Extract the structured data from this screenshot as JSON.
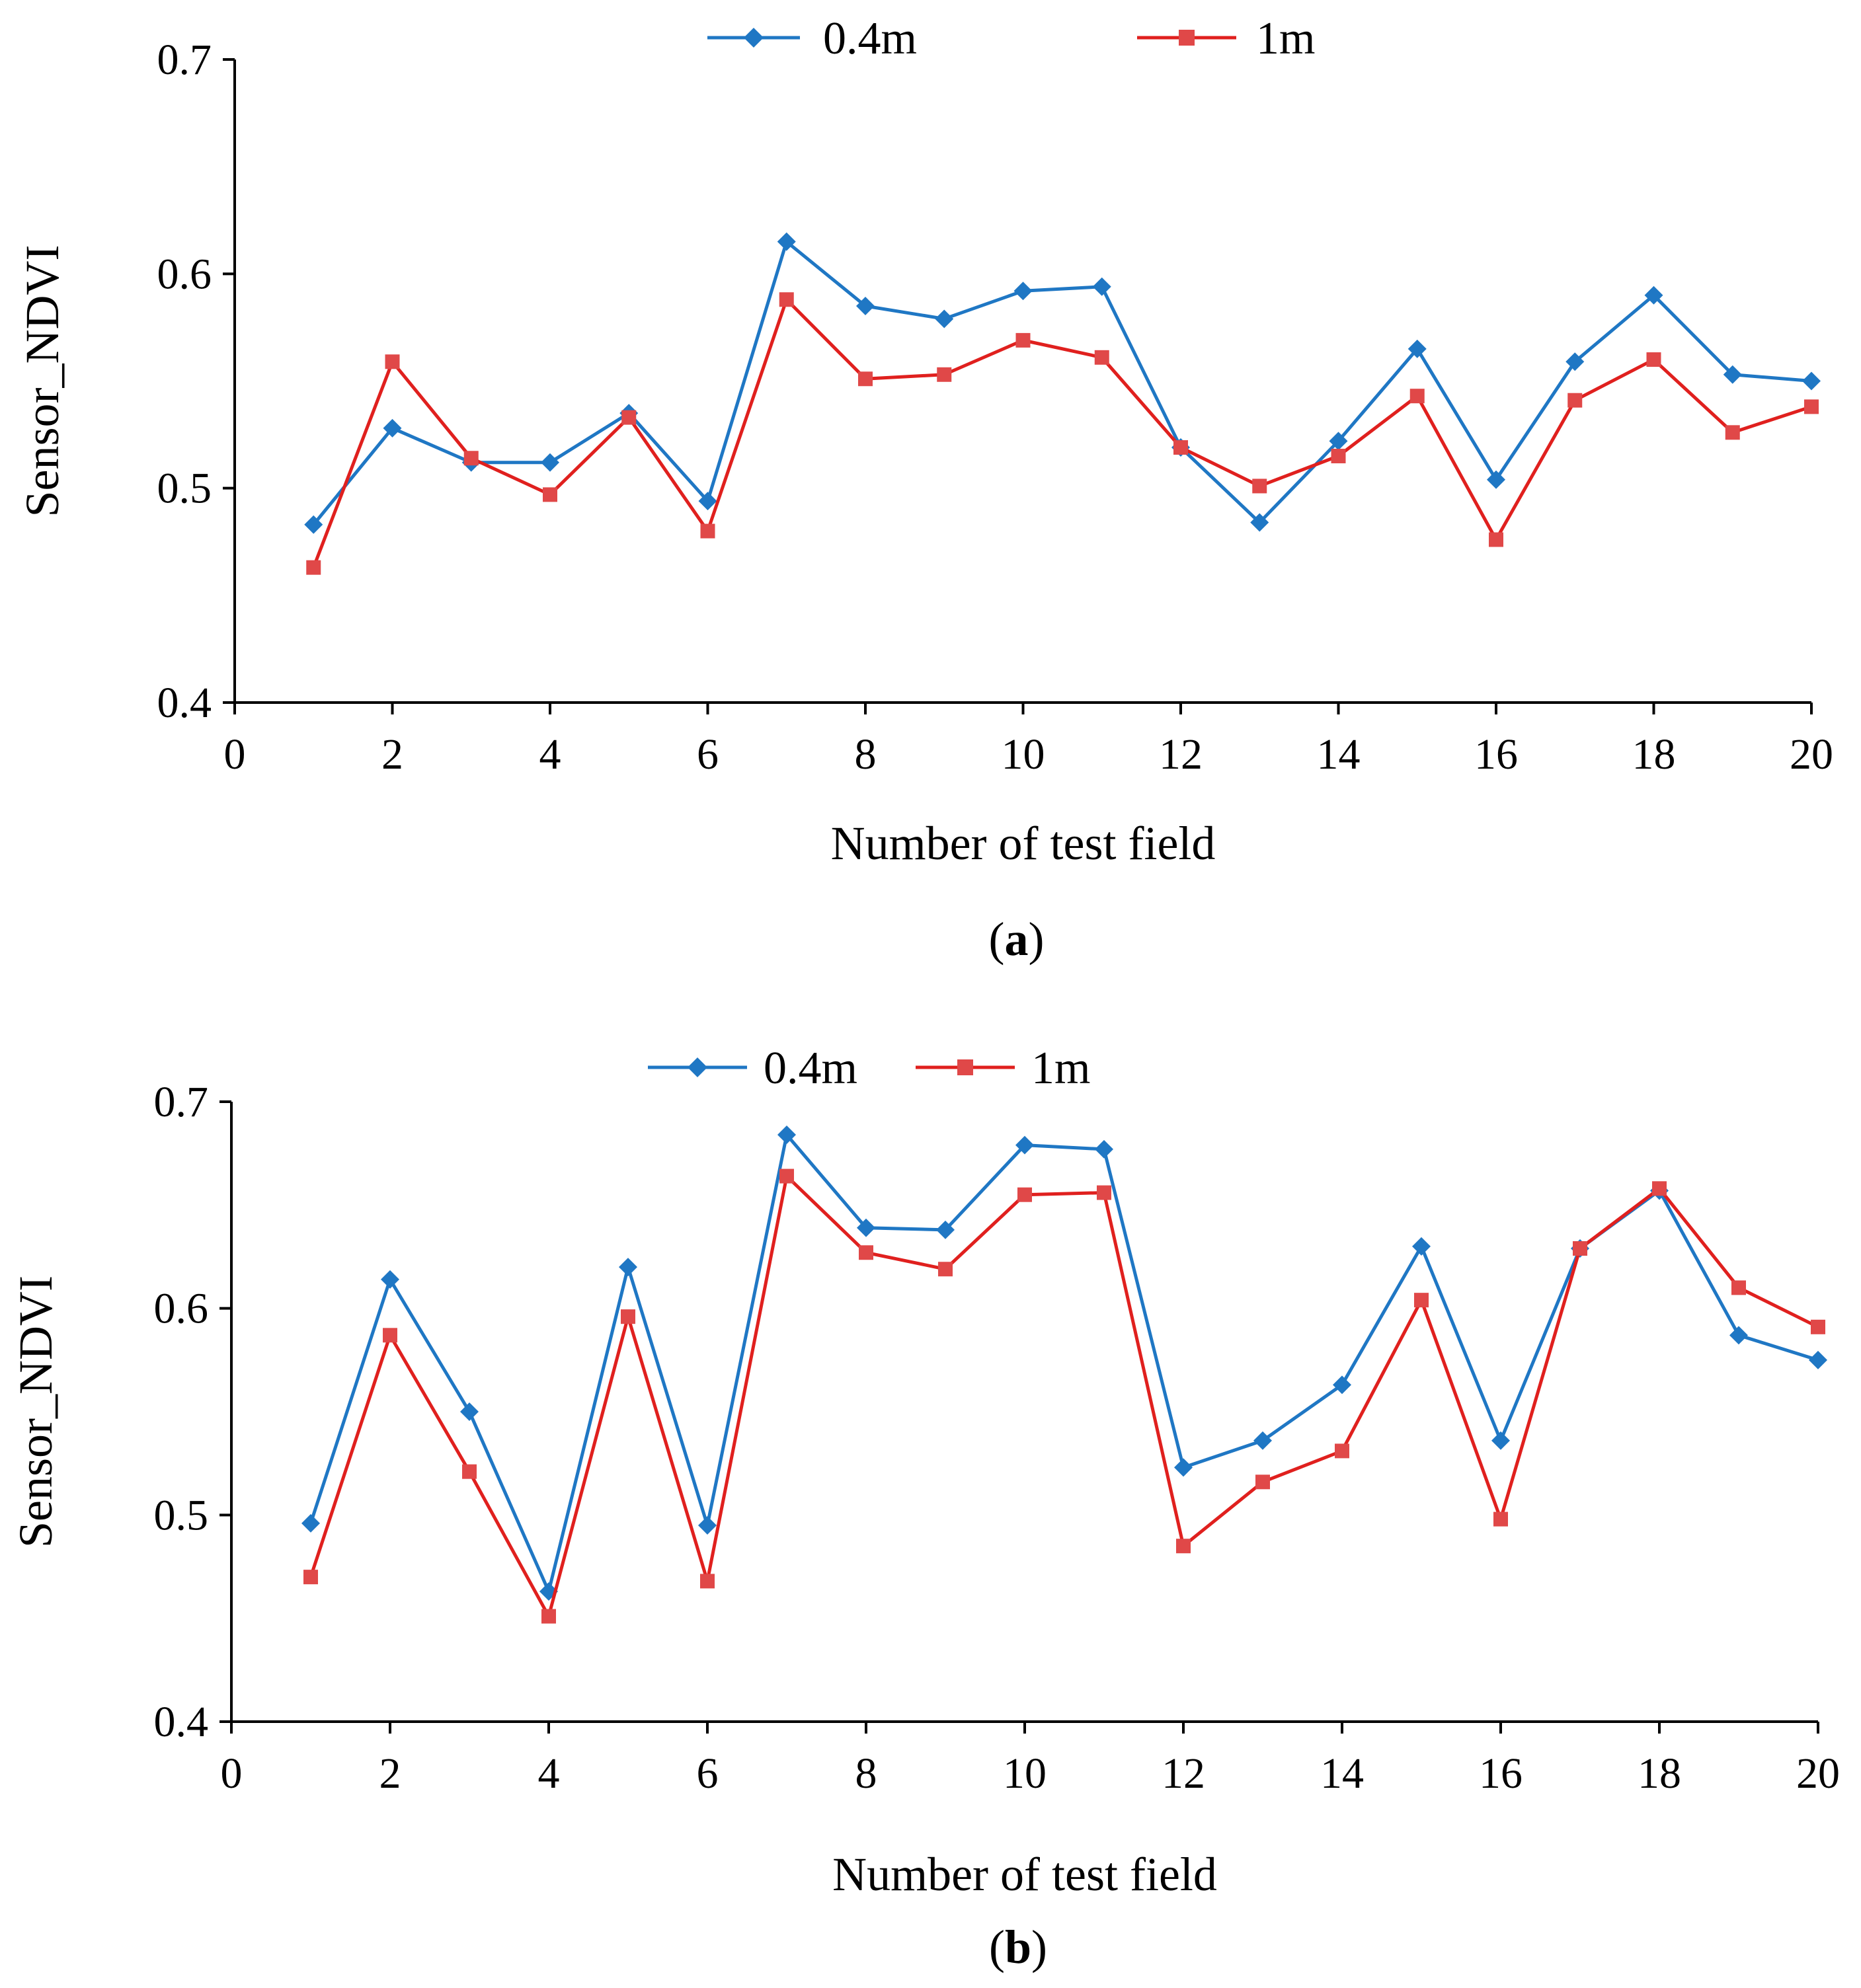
{
  "chart_data": [
    {
      "type": "line",
      "panel_label": "a",
      "xlabel": "Number of test field",
      "ylabel": "Sensor_NDVI",
      "xlim": [
        0,
        20
      ],
      "ylim": [
        0.4,
        0.7
      ],
      "xticks": [
        0,
        2,
        4,
        6,
        8,
        10,
        12,
        14,
        16,
        18,
        20
      ],
      "yticks": [
        "0.4",
        "0.5",
        "0.6",
        "0.7"
      ],
      "grid": false,
      "legend_position": "top-center",
      "x": [
        1,
        2,
        3,
        4,
        5,
        6,
        7,
        8,
        9,
        10,
        11,
        12,
        13,
        14,
        15,
        16,
        17,
        18,
        19,
        20
      ],
      "series": [
        {
          "name": "0.4m",
          "color": "#1f77c4",
          "marker": "diamond",
          "values": [
            0.483,
            0.528,
            0.512,
            0.512,
            0.535,
            0.494,
            0.615,
            0.585,
            0.579,
            0.592,
            0.594,
            0.519,
            0.484,
            0.522,
            0.565,
            0.504,
            0.559,
            0.59,
            0.553,
            0.55
          ]
        },
        {
          "name": "1m",
          "color": "#e0201e",
          "marker": "square",
          "values": [
            0.463,
            0.559,
            0.514,
            0.497,
            0.533,
            0.48,
            0.588,
            0.551,
            0.553,
            0.569,
            0.561,
            0.519,
            0.501,
            0.515,
            0.543,
            0.476,
            0.541,
            0.56,
            0.526,
            0.538
          ]
        }
      ]
    },
    {
      "type": "line",
      "panel_label": "b",
      "xlabel": "Number of test field",
      "ylabel": "Sensor_NDVI",
      "xlim": [
        0,
        20
      ],
      "ylim": [
        0.4,
        0.7
      ],
      "xticks": [
        0,
        2,
        4,
        6,
        8,
        10,
        12,
        14,
        16,
        18,
        20
      ],
      "yticks": [
        "0.4",
        "0.5",
        "0.6",
        "0.7"
      ],
      "grid": false,
      "legend_position": "top-center",
      "x": [
        1,
        2,
        3,
        4,
        5,
        6,
        7,
        8,
        9,
        10,
        11,
        12,
        13,
        14,
        15,
        16,
        17,
        18,
        19,
        20
      ],
      "series": [
        {
          "name": "0.4m",
          "color": "#1f77c4",
          "marker": "diamond",
          "values": [
            0.496,
            0.614,
            0.55,
            0.463,
            0.62,
            0.495,
            0.684,
            0.639,
            0.638,
            0.679,
            0.677,
            0.523,
            0.536,
            0.563,
            0.63,
            0.536,
            0.629,
            0.657,
            0.587,
            0.575
          ]
        },
        {
          "name": "1m",
          "color": "#e0201e",
          "marker": "square",
          "values": [
            0.47,
            0.587,
            0.521,
            0.451,
            0.596,
            0.468,
            0.664,
            0.627,
            0.619,
            0.655,
            0.656,
            0.485,
            0.516,
            0.531,
            0.604,
            0.498,
            0.629,
            0.658,
            0.61,
            0.591
          ]
        }
      ]
    }
  ]
}
